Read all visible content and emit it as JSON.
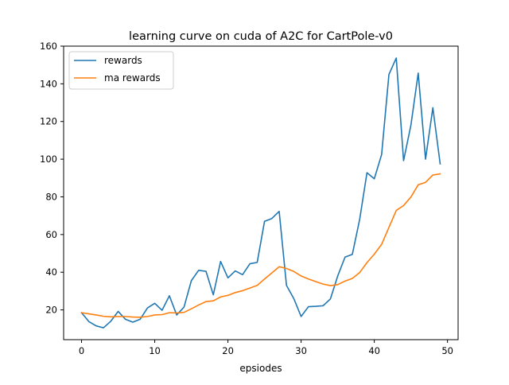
{
  "chart_data": {
    "type": "line",
    "title": "learning curve on cuda of A2C for CartPole-v0",
    "xlabel": "epsiodes",
    "ylabel": "",
    "xlim": [
      -2.45,
      51.45
    ],
    "ylim": [
      4.2,
      160
    ],
    "xticks": [
      0,
      10,
      20,
      30,
      40,
      50
    ],
    "yticks": [
      20,
      40,
      60,
      80,
      100,
      120,
      140,
      160
    ],
    "grid": false,
    "legend_position": "top-left",
    "x": [
      0,
      1,
      2,
      3,
      4,
      5,
      6,
      7,
      8,
      9,
      10,
      11,
      12,
      13,
      14,
      15,
      16,
      17,
      18,
      19,
      20,
      21,
      22,
      23,
      24,
      25,
      26,
      27,
      28,
      29,
      30,
      31,
      32,
      33,
      34,
      35,
      36,
      37,
      38,
      39,
      40,
      41,
      42,
      43,
      44,
      45,
      46,
      47,
      48,
      49
    ],
    "series": [
      {
        "name": "rewards",
        "color": "#1f77b4",
        "values": [
          18.5,
          13.8,
          11.5,
          10.5,
          14,
          19.2,
          15,
          13.5,
          15,
          21,
          23.5,
          19.8,
          27.5,
          17.3,
          21.5,
          35.5,
          41,
          40.5,
          28,
          45.7,
          37,
          40.7,
          38.7,
          44.5,
          45.2,
          67,
          68.5,
          72.3,
          33,
          26,
          16.5,
          21.7,
          21.9,
          22.2,
          25.8,
          38,
          48,
          49.5,
          68,
          92.8,
          89.6,
          102.5,
          145,
          153.7,
          99.2,
          118,
          145.7,
          100,
          127.3,
          97.5
        ]
      },
      {
        "name": "ma rewards",
        "color": "#ff7f0e",
        "values": [
          18.5,
          17.9,
          17.3,
          16.6,
          16.3,
          16.5,
          16.5,
          16.2,
          16.1,
          16.5,
          17.3,
          17.5,
          18.5,
          18.4,
          18.7,
          20.6,
          22.6,
          24.4,
          24.8,
          26.9,
          27.7,
          29.2,
          30.2,
          31.6,
          33,
          36.4,
          39.6,
          42.9,
          42,
          40.4,
          38,
          36.4,
          35,
          33.7,
          32.9,
          33.4,
          35.3,
          36.7,
          39.8,
          45.1,
          49.6,
          54.8,
          63.8,
          72.8,
          75.4,
          79.9,
          86.4,
          87.7,
          91.6,
          92.2
        ]
      }
    ]
  }
}
